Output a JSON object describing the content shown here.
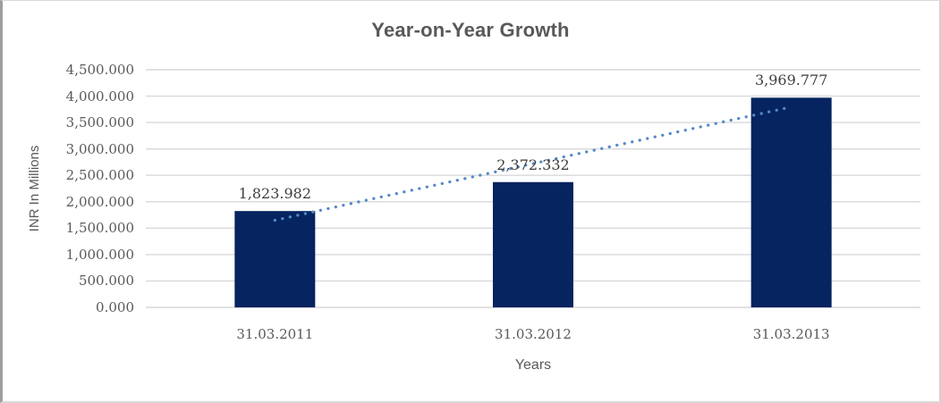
{
  "chart": {
    "title": "Year-on-Year Growth",
    "y_axis_title": "INR In Millions",
    "x_axis_title": "Years",
    "colors": {
      "bar": "#052460",
      "trendline": "#5389c8",
      "gridline": "#d9d9d9",
      "title_text": "#595959",
      "axis_text": "#595959",
      "data_label_text": "#3d3d3d",
      "frame_left": "#9e9e9e",
      "frame_light": "#dadada",
      "background": "#ffffff"
    }
  },
  "chart_data": {
    "type": "bar",
    "title": "Year-on-Year Growth",
    "xlabel": "Years",
    "ylabel": "INR In Millions",
    "categories": [
      "31.03.2011",
      "31.03.2012",
      "31.03.2013"
    ],
    "values": [
      1823.982,
      2372.332,
      3969.777
    ],
    "data_labels": [
      "1,823.982",
      "2,372.332",
      "3,969.777"
    ],
    "yticks": [
      "4,500.000",
      "4,000.000",
      "3,500.000",
      "3,000.000",
      "2,500.000",
      "2,000.000",
      "1,500.000",
      "1,000.000",
      "500.000",
      "0.000"
    ],
    "ylim": [
      0,
      4500
    ],
    "grid": true,
    "legend": "none",
    "bar_color": "#052460",
    "trendline": {
      "type": "linear",
      "style": "dotted",
      "color": "#5389c8",
      "values": [
        1649.05,
        2722.03,
        3795.01
      ]
    }
  }
}
